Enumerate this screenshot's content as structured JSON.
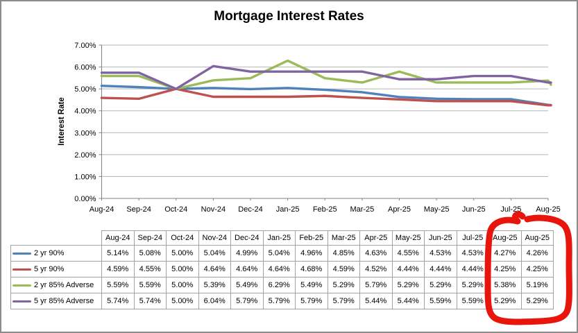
{
  "chart_data": {
    "type": "line",
    "title": "Mortgage Interest Rates",
    "ylabel": "Interest Rate",
    "xlabel": "",
    "categories": [
      "Aug-24",
      "Sep-24",
      "Oct-24",
      "Nov-24",
      "Dec-24",
      "Jan-25",
      "Feb-25",
      "Mar-25",
      "Apr-25",
      "May-25",
      "Jun-25",
      "Jul-25",
      "Aug-25",
      "Aug-25"
    ],
    "x_axis_shown_labels": [
      "Aug-24",
      "Sep-24",
      "Oct-24",
      "Nov-24",
      "Dec-24",
      "Jan-25",
      "Feb-25",
      "Mar-25",
      "Apr-25",
      "May-25",
      "Jun-25",
      "Jul-25",
      "Aug-25"
    ],
    "y_tick_labels": [
      "0.00%",
      "1.00%",
      "2.00%",
      "3.00%",
      "4.00%",
      "5.00%",
      "6.00%",
      "7.00%"
    ],
    "ylim": [
      0,
      7
    ],
    "grid": true,
    "value_format": "0.00%",
    "legend_position": "table-row-headers",
    "series": [
      {
        "name": "2 yr 90%",
        "color": "#4F81BD",
        "values": [
          5.14,
          5.08,
          5.0,
          5.04,
          4.99,
          5.04,
          4.96,
          4.85,
          4.63,
          4.55,
          4.53,
          4.53,
          4.27,
          4.26
        ]
      },
      {
        "name": "5 yr 90%",
        "color": "#C0504D",
        "values": [
          4.59,
          4.55,
          5.0,
          4.64,
          4.64,
          4.64,
          4.68,
          4.59,
          4.52,
          4.44,
          4.44,
          4.44,
          4.25,
          4.25
        ]
      },
      {
        "name": "2 yr 85% Adverse",
        "color": "#9BBB59",
        "values": [
          5.59,
          5.59,
          5.0,
          5.39,
          5.49,
          6.29,
          5.49,
          5.29,
          5.79,
          5.29,
          5.29,
          5.29,
          5.38,
          5.19
        ]
      },
      {
        "name": "5 yr 85% Adverse",
        "color": "#8064A2",
        "values": [
          5.74,
          5.74,
          5.0,
          6.04,
          5.79,
          5.79,
          5.79,
          5.79,
          5.44,
          5.44,
          5.59,
          5.59,
          5.29,
          5.29
        ]
      }
    ]
  },
  "annotation": {
    "type": "hand-drawn-circle",
    "color": "#E8150D",
    "highlights": "last two Aug-25 table columns"
  },
  "colors": {
    "gridline": "#b3b3b3",
    "axis": "#808080",
    "table_border": "#a0a0a0",
    "frame_border": "#8c8c8c",
    "background": "#ffffff",
    "text": "#000000"
  }
}
